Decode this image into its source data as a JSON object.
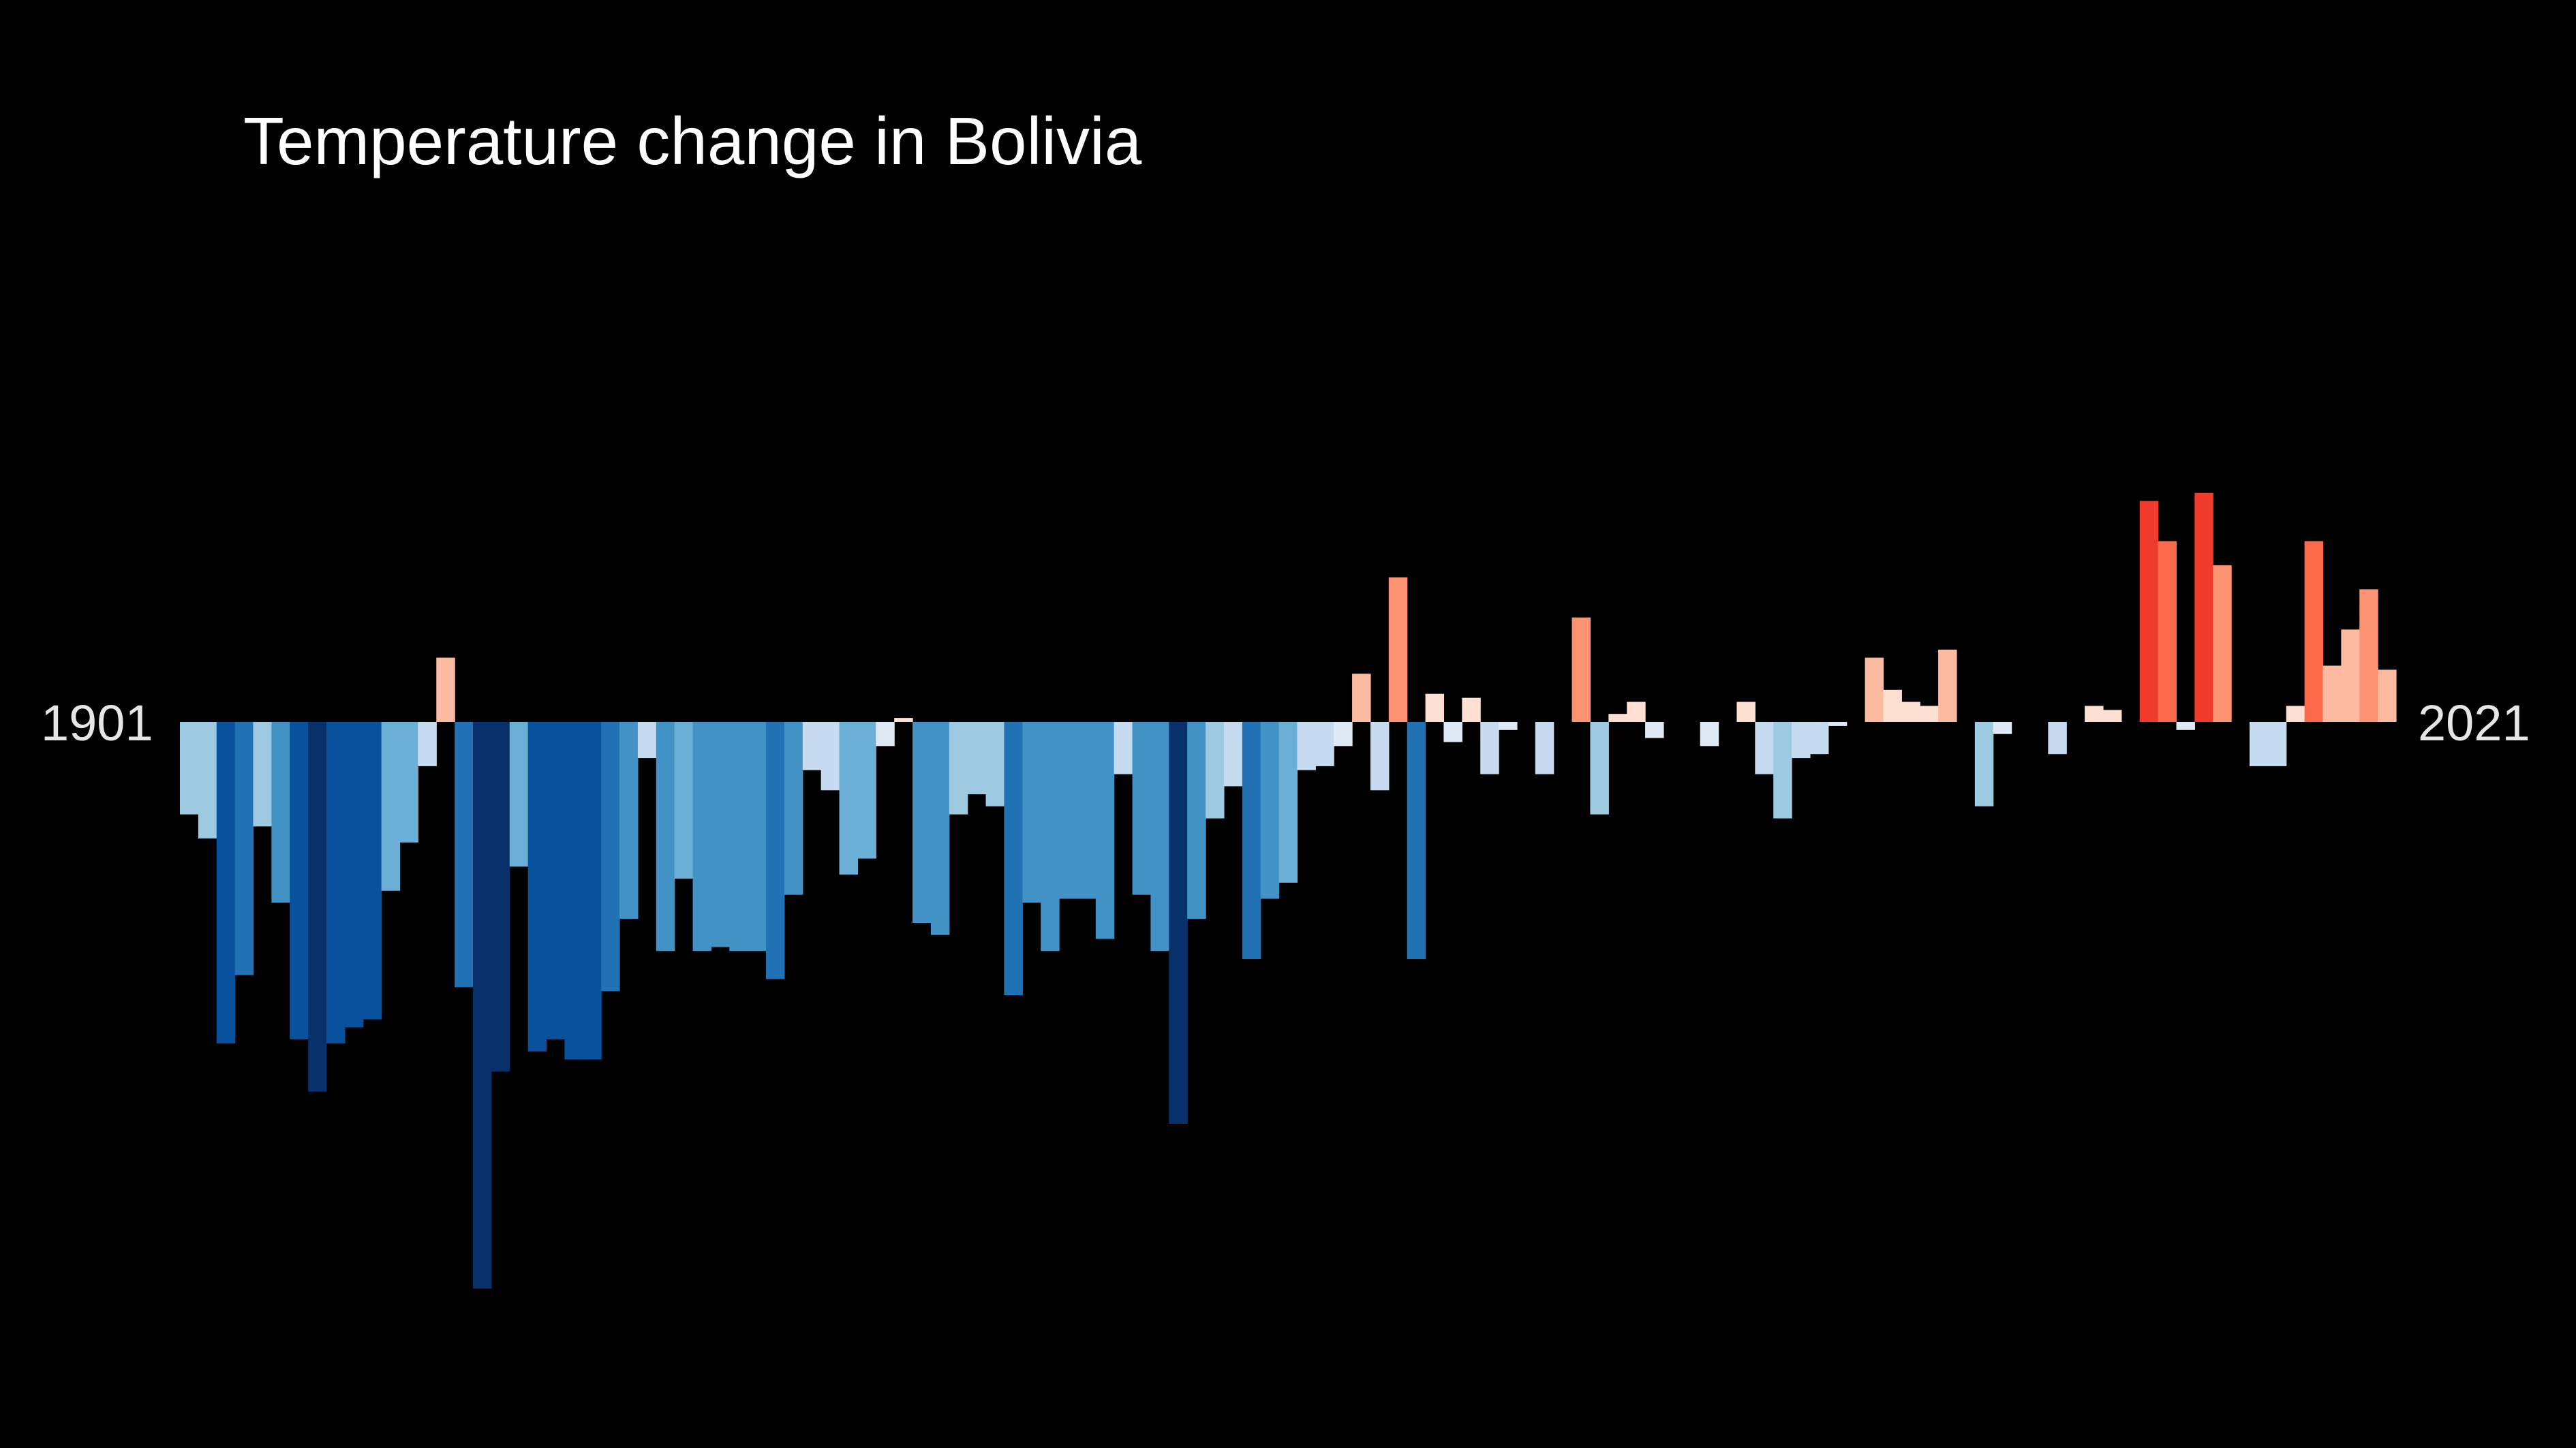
{
  "chart_data": {
    "type": "bar",
    "title": "Temperature change in Bolivia",
    "x_start_label": "1901",
    "x_end_label": "2021",
    "x": [
      1901,
      1902,
      1903,
      1904,
      1905,
      1906,
      1907,
      1908,
      1909,
      1910,
      1911,
      1912,
      1913,
      1914,
      1915,
      1916,
      1917,
      1918,
      1919,
      1920,
      1921,
      1922,
      1923,
      1924,
      1925,
      1926,
      1927,
      1928,
      1929,
      1930,
      1931,
      1932,
      1933,
      1934,
      1935,
      1936,
      1937,
      1938,
      1939,
      1940,
      1941,
      1942,
      1943,
      1944,
      1945,
      1946,
      1947,
      1948,
      1949,
      1950,
      1951,
      1952,
      1953,
      1954,
      1955,
      1956,
      1957,
      1958,
      1959,
      1960,
      1961,
      1962,
      1963,
      1964,
      1965,
      1966,
      1967,
      1968,
      1969,
      1970,
      1971,
      1972,
      1973,
      1974,
      1975,
      1976,
      1977,
      1978,
      1979,
      1980,
      1981,
      1982,
      1983,
      1984,
      1985,
      1986,
      1987,
      1988,
      1989,
      1990,
      1991,
      1992,
      1993,
      1994,
      1995,
      1996,
      1997,
      1998,
      1999,
      2000,
      2001,
      2002,
      2003,
      2004,
      2005,
      2006,
      2007,
      2008,
      2009,
      2010,
      2011,
      2012,
      2013,
      2014,
      2015,
      2016,
      2017,
      2018,
      2019,
      2020,
      2021
    ],
    "values": [
      -0.23,
      -0.29,
      -0.8,
      -0.63,
      -0.26,
      -0.45,
      -0.79,
      -0.92,
      -0.8,
      -0.76,
      -0.74,
      -0.42,
      -0.3,
      -0.11,
      0.16,
      -0.66,
      -1.41,
      -0.87,
      -0.36,
      -0.82,
      -0.79,
      -0.84,
      -0.84,
      -0.67,
      -0.49,
      -0.09,
      -0.57,
      -0.39,
      -0.57,
      -0.56,
      -0.57,
      -0.57,
      -0.64,
      -0.43,
      -0.12,
      -0.17,
      -0.38,
      -0.34,
      -0.06,
      0.01,
      -0.5,
      -0.53,
      -0.23,
      -0.18,
      -0.21,
      -0.68,
      -0.45,
      -0.57,
      -0.44,
      -0.44,
      -0.54,
      -0.13,
      -0.43,
      -0.57,
      -1.0,
      -0.49,
      -0.24,
      -0.16,
      -0.59,
      -0.44,
      -0.4,
      -0.12,
      -0.11,
      -0.06,
      0.12,
      -0.17,
      0.36,
      -0.59,
      0.07,
      -0.05,
      0.06,
      -0.13,
      -0.02,
      0.0,
      -0.13,
      0.0,
      0.26,
      -0.23,
      0.02,
      0.05,
      -0.04,
      0.0,
      0.0,
      -0.06,
      0.0,
      0.05,
      -0.13,
      -0.24,
      -0.09,
      -0.08,
      -0.01,
      0.0,
      0.16,
      0.08,
      0.05,
      0.04,
      0.18,
      0.0,
      -0.21,
      -0.03,
      0.0,
      0.0,
      -0.08,
      0.0,
      0.04,
      0.03,
      0.0,
      0.55,
      0.45,
      -0.02,
      0.57,
      0.39,
      0.0,
      -0.11,
      -0.11,
      0.04,
      0.45,
      0.14,
      0.23,
      0.33,
      0.13
    ]
  },
  "colors": {
    "background": "#000000",
    "title_text": "#ffffff",
    "year_label_text": "#e6e6e6",
    "cool_scale": [
      "#08306b",
      "#08519c",
      "#2171b5",
      "#4292c6",
      "#6baed6",
      "#9ecae1",
      "#c6dbef",
      "#deebf7"
    ],
    "warm_scale": [
      "#fee0d2",
      "#fcbba1",
      "#fc9272",
      "#fb6a4a",
      "#ef3b2c",
      "#cb181d",
      "#a50f15",
      "#67000d"
    ]
  }
}
